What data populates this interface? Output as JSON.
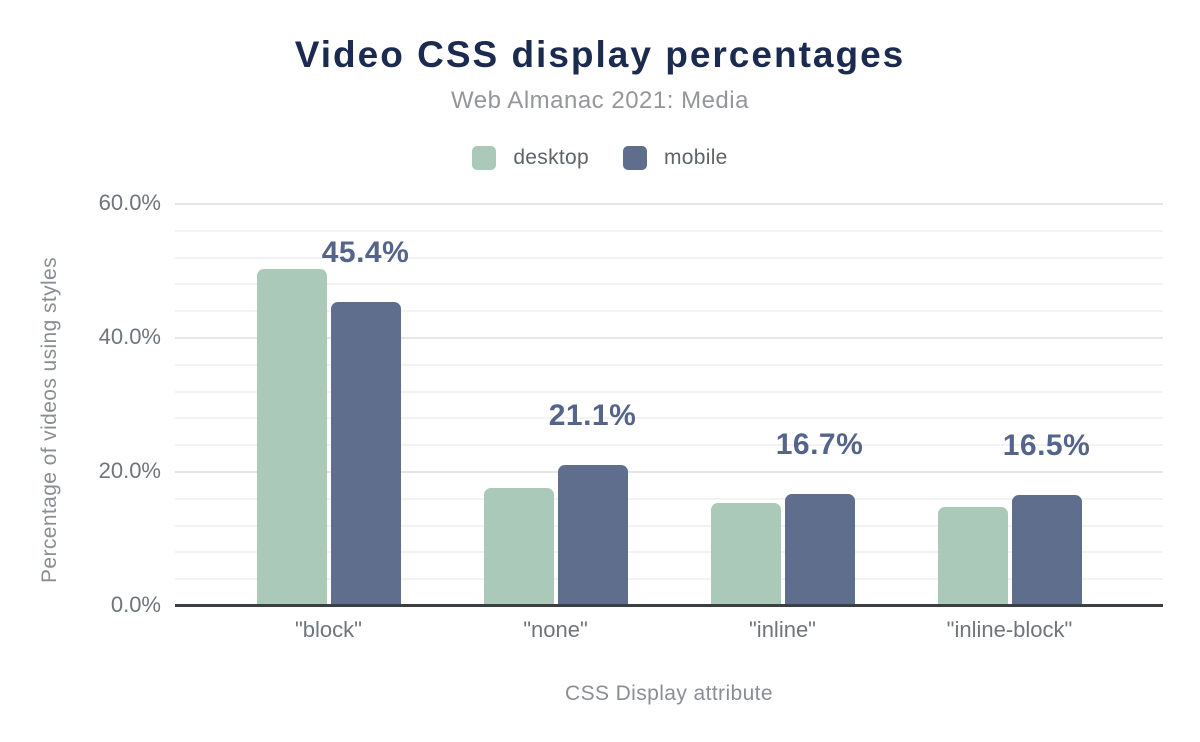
{
  "chart_data": {
    "type": "bar",
    "title": "Video CSS display percentages",
    "subtitle": "Web Almanac 2021: Media",
    "xlabel": "CSS Display attribute",
    "ylabel": "Percentage of videos using styles",
    "categories": [
      "\"block\"",
      "\"none\"",
      "\"inline\"",
      "\"inline-block\""
    ],
    "series": [
      {
        "name": "desktop",
        "color": "#aac9b8",
        "values": [
          50.3,
          17.6,
          15.4,
          14.8
        ]
      },
      {
        "name": "mobile",
        "color": "#5e6e8c",
        "values": [
          45.4,
          21.1,
          16.7,
          16.5
        ]
      }
    ],
    "bar_value_labels": {
      "series": "mobile",
      "labels": [
        "45.4%",
        "21.1%",
        "16.7%",
        "16.5%"
      ]
    },
    "ylim": [
      0,
      60
    ],
    "yticks": [
      {
        "value": 0,
        "label": "0.0%"
      },
      {
        "value": 20,
        "label": "20.0%"
      },
      {
        "value": 40,
        "label": "40.0%"
      },
      {
        "value": 60,
        "label": "60.0%"
      }
    ],
    "grid": {
      "on": true,
      "major_step": 20,
      "minor_step": 4
    },
    "legend_position": "top"
  },
  "colors": {
    "background": "#ffffff",
    "title_text": "#1b2b50",
    "subtitle_text": "#949699",
    "legend_text": "#5f6468",
    "axis_title_text": "#8a8e93",
    "tick_text": "#6f757b",
    "data_label_text": "#55648a",
    "desktop_bar": "#aac9b8",
    "mobile_bar": "#5e6e8c",
    "grid_major": "#e6e6e6",
    "grid_minor": "#f3f3f3",
    "axis_baseline": "#3b3e42"
  }
}
